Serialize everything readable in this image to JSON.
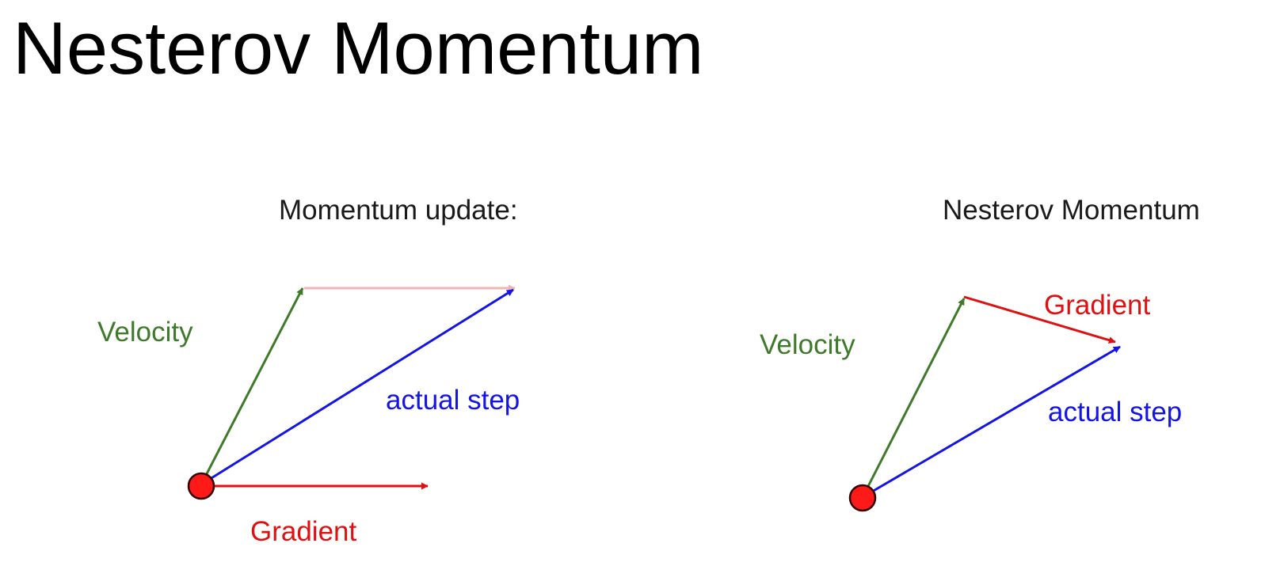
{
  "slide": {
    "title": "Nesterov Momentum"
  },
  "colors": {
    "velocity": "#3f7a2a",
    "actual_step": "#1414e6",
    "gradient": "#dd1111",
    "gradient_faded": "#f0b4b4",
    "point_fill": "#ff1a1a",
    "point_stroke": "#330000"
  },
  "momentum_panel": {
    "title": "Momentum update:",
    "velocity_label": "Velocity",
    "actual_step_label": "actual step",
    "gradient_label": "Gradient"
  },
  "nesterov_panel": {
    "title": "Nesterov Momentum",
    "velocity_label": "Velocity",
    "actual_step_label": "actual step",
    "gradient_label": "Gradient"
  }
}
